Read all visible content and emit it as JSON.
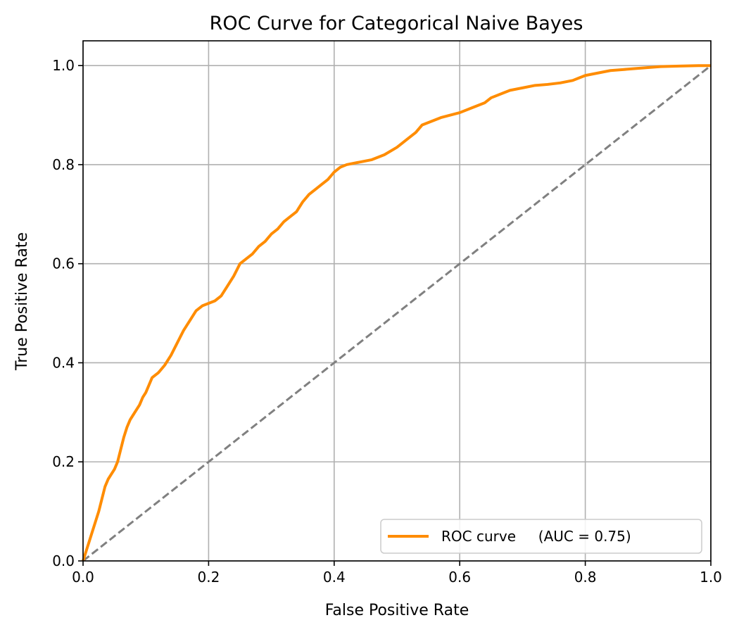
{
  "chart_data": {
    "type": "line",
    "title": "ROC Curve for Categorical Naive Bayes",
    "xlabel": "False Positive Rate",
    "ylabel": "True Positive Rate",
    "xlim": [
      0.0,
      1.0
    ],
    "ylim": [
      0.0,
      1.05
    ],
    "x_ticks": [
      0.0,
      0.2,
      0.4,
      0.6,
      0.8,
      1.0
    ],
    "y_ticks": [
      0.0,
      0.2,
      0.4,
      0.6,
      0.8,
      1.0
    ],
    "x_tick_labels": [
      "0.0",
      "0.2",
      "0.4",
      "0.6",
      "0.8",
      "1.0"
    ],
    "y_tick_labels": [
      "0.0",
      "0.2",
      "0.4",
      "0.6",
      "0.8",
      "1.0"
    ],
    "grid": true,
    "legend_position": "lower-right",
    "series": [
      {
        "name": "ROC curve     (AUC = 0.75)",
        "color": "#ff8c00",
        "style": "solid",
        "x": [
          0.0,
          0.005,
          0.01,
          0.015,
          0.02,
          0.025,
          0.03,
          0.035,
          0.04,
          0.045,
          0.05,
          0.055,
          0.06,
          0.065,
          0.07,
          0.075,
          0.08,
          0.085,
          0.09,
          0.095,
          0.1,
          0.105,
          0.11,
          0.115,
          0.12,
          0.13,
          0.14,
          0.15,
          0.16,
          0.165,
          0.17,
          0.18,
          0.19,
          0.2,
          0.21,
          0.22,
          0.23,
          0.24,
          0.25,
          0.26,
          0.27,
          0.28,
          0.29,
          0.3,
          0.31,
          0.32,
          0.33,
          0.34,
          0.35,
          0.36,
          0.37,
          0.38,
          0.39,
          0.4,
          0.41,
          0.42,
          0.44,
          0.46,
          0.48,
          0.5,
          0.52,
          0.53,
          0.54,
          0.55,
          0.56,
          0.57,
          0.6,
          0.62,
          0.64,
          0.65,
          0.67,
          0.68,
          0.7,
          0.72,
          0.74,
          0.76,
          0.78,
          0.79,
          0.8,
          0.82,
          0.84,
          0.86,
          0.88,
          0.9,
          0.92,
          0.95,
          0.98,
          1.0
        ],
        "y": [
          0.0,
          0.02,
          0.04,
          0.06,
          0.08,
          0.1,
          0.125,
          0.15,
          0.165,
          0.175,
          0.185,
          0.2,
          0.225,
          0.25,
          0.27,
          0.285,
          0.295,
          0.305,
          0.315,
          0.33,
          0.34,
          0.355,
          0.37,
          0.375,
          0.38,
          0.395,
          0.415,
          0.44,
          0.465,
          0.475,
          0.485,
          0.505,
          0.515,
          0.52,
          0.525,
          0.535,
          0.555,
          0.575,
          0.6,
          0.61,
          0.62,
          0.635,
          0.645,
          0.66,
          0.67,
          0.685,
          0.695,
          0.705,
          0.725,
          0.74,
          0.75,
          0.76,
          0.77,
          0.785,
          0.795,
          0.8,
          0.805,
          0.81,
          0.82,
          0.835,
          0.855,
          0.865,
          0.88,
          0.885,
          0.89,
          0.895,
          0.905,
          0.915,
          0.925,
          0.935,
          0.945,
          0.95,
          0.955,
          0.96,
          0.962,
          0.965,
          0.97,
          0.975,
          0.98,
          0.985,
          0.99,
          0.992,
          0.994,
          0.996,
          0.998,
          0.999,
          1.0,
          1.0
        ]
      },
      {
        "color": "#808080",
        "style": "dashed",
        "x": [
          0.0,
          1.0
        ],
        "y": [
          0.0,
          1.0
        ]
      }
    ]
  }
}
